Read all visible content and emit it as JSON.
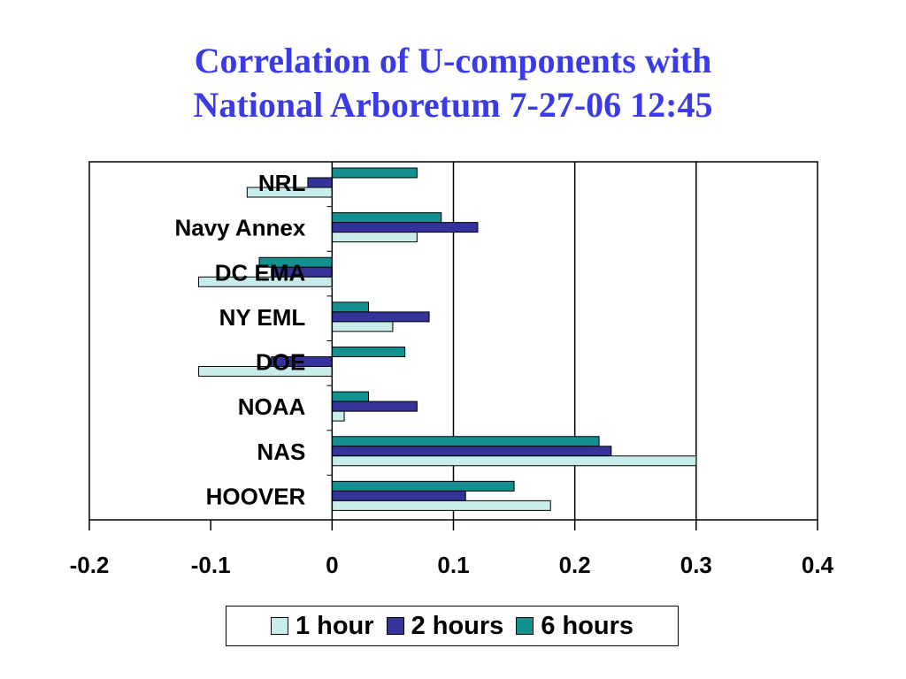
{
  "title_lines": [
    "Correlation of U-components with",
    "National Arboretum 7-27-06 12:45"
  ],
  "chart_data": {
    "type": "bar",
    "orientation": "horizontal",
    "title": "Correlation of U-components with National Arboretum 7-27-06 12:45",
    "categories": [
      "NRL",
      "Navy Annex",
      "DC EMA",
      "NY EML",
      "DOE",
      "NOAA",
      "NAS",
      "HOOVER"
    ],
    "series": [
      {
        "name": "6 hours",
        "color": "#139090",
        "values": [
          0.07,
          0.09,
          -0.06,
          0.03,
          0.06,
          0.03,
          0.22,
          0.15
        ]
      },
      {
        "name": "2 hours",
        "color": "#33339a",
        "values": [
          -0.02,
          0.12,
          -0.05,
          0.08,
          -0.05,
          0.07,
          0.23,
          0.11
        ]
      },
      {
        "name": "1 hour",
        "color": "#c8ecec",
        "values": [
          -0.07,
          0.07,
          -0.11,
          0.05,
          -0.11,
          0.01,
          0.3,
          0.18
        ]
      }
    ],
    "xlim": [
      -0.2,
      0.4
    ],
    "xticks": [
      "-0.2",
      "-0.1",
      "0",
      "0.1",
      "0.2",
      "0.3",
      "0.4"
    ],
    "xtick_values": [
      -0.2,
      -0.1,
      0,
      0.1,
      0.2,
      0.3,
      0.4
    ],
    "gridlines": [
      0.1,
      0.2,
      0.3
    ],
    "grid": true,
    "legend_position": "bottom",
    "legend": [
      "1 hour",
      "2 hours",
      "6 hours"
    ]
  }
}
